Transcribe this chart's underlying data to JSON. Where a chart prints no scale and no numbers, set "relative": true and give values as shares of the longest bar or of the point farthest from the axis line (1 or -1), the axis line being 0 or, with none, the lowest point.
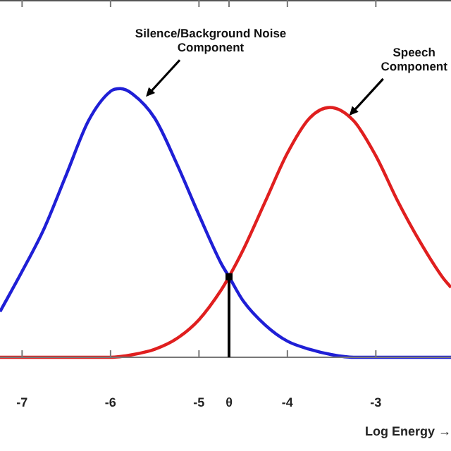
{
  "chart_data": {
    "type": "line",
    "relative": true,
    "xlabel": "Log Energy →",
    "xlim": [
      -7.25,
      -2.15
    ],
    "xticks": [
      -7,
      -6,
      -5,
      {
        "value": -4.66,
        "label": "θ"
      },
      -4,
      -3
    ],
    "series": [
      {
        "color": "#1f1fd6",
        "x": [
          -7.25,
          -7.0,
          -6.75,
          -6.5,
          -6.25,
          -6.0,
          -5.89,
          -5.75,
          -5.5,
          -5.25,
          -5.0,
          -4.75,
          -4.66,
          -4.5,
          -4.25,
          -4.0,
          -3.75,
          -3.5,
          -3.25,
          -3.0,
          -2.75,
          -2.5,
          -2.15
        ],
        "values": [
          0.17,
          0.32,
          0.48,
          0.68,
          0.88,
          0.99,
          1.0,
          0.98,
          0.89,
          0.72,
          0.53,
          0.35,
          0.3,
          0.21,
          0.12,
          0.06,
          0.03,
          0.01,
          0.0,
          0.0,
          0.0,
          0.0,
          0.0
        ]
      },
      {
        "color": "#e01f1f",
        "x": [
          -7.25,
          -6.5,
          -6.0,
          -5.75,
          -5.5,
          -5.25,
          -5.0,
          -4.75,
          -4.66,
          -4.5,
          -4.25,
          -4.0,
          -3.75,
          -3.52,
          -3.25,
          -3.0,
          -2.75,
          -2.5,
          -2.25,
          -2.15
        ],
        "values": [
          0.0,
          0.0,
          0.0,
          0.01,
          0.03,
          0.07,
          0.14,
          0.25,
          0.3,
          0.4,
          0.58,
          0.76,
          0.89,
          0.93,
          0.88,
          0.75,
          0.58,
          0.43,
          0.3,
          0.26
        ]
      }
    ],
    "ref_lines": [
      {
        "axis": "x",
        "value": -4.66,
        "color": "#000000"
      }
    ],
    "annotations": [
      {
        "text": "Silence/Background Noise Component",
        "x": -5.6,
        "y": 0.97
      },
      {
        "text": "Speech Component",
        "x": -3.3,
        "y": 0.9
      }
    ],
    "legend": false,
    "grid": false,
    "marker": "none",
    "line_style": "solid"
  }
}
